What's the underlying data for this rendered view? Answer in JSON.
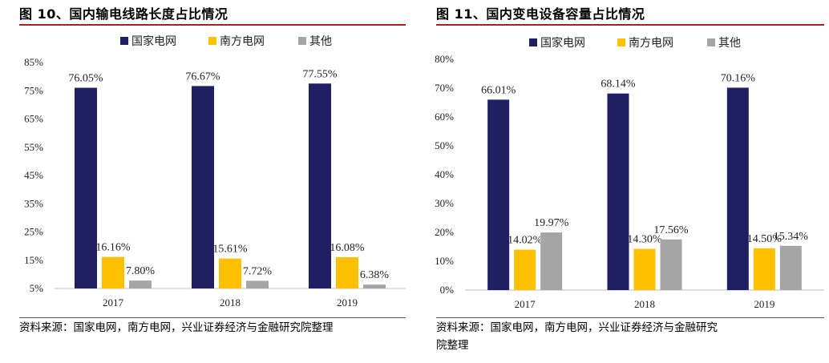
{
  "colors": {
    "state_grid": "#1f1f63",
    "southern_grid": "#ffc000",
    "other": "#a5a5a5",
    "title_rule": "#b01e23"
  },
  "left": {
    "title": "图 10、国内输电线路长度占比情况",
    "source": "资料来源：国家电网，南方电网，兴业证券经济与金融研究院整理"
  },
  "right": {
    "title": "图 11、国内变电设备容量占比情况",
    "source_line1": "资料来源：国家电网，南方电网，兴业证券经济与金融研究",
    "source_line2": "院整理"
  },
  "chart_data": [
    {
      "type": "bar",
      "categories": [
        "2017",
        "2018",
        "2019"
      ],
      "series": [
        {
          "name": "国家电网",
          "values": [
            76.05,
            76.67,
            77.55
          ],
          "labels": [
            "76.05%",
            "76.67%",
            "77.55%"
          ]
        },
        {
          "name": "南方电网",
          "values": [
            16.16,
            15.61,
            16.08
          ],
          "labels": [
            "16.16%",
            "15.61%",
            "16.08%"
          ]
        },
        {
          "name": "其他",
          "values": [
            7.8,
            7.72,
            6.38
          ],
          "labels": [
            "7.80%",
            "7.72%",
            "6.38%"
          ]
        }
      ],
      "ylim": [
        5,
        85
      ],
      "yticks": [
        5,
        15,
        25,
        35,
        45,
        55,
        65,
        75,
        85
      ],
      "yticklabels": [
        "5%",
        "15%",
        "25%",
        "35%",
        "45%",
        "55%",
        "65%",
        "75%",
        "85%"
      ],
      "legend": "top",
      "grid": false
    },
    {
      "type": "bar",
      "categories": [
        "2017",
        "2018",
        "2019"
      ],
      "series": [
        {
          "name": "国家电网",
          "values": [
            66.01,
            68.14,
            70.16
          ],
          "labels": [
            "66.01%",
            "68.14%",
            "70.16%"
          ]
        },
        {
          "name": "南方电网",
          "values": [
            14.02,
            14.3,
            14.5
          ],
          "labels": [
            "14.02%",
            "14.30%",
            "14.50%"
          ]
        },
        {
          "name": "其他",
          "values": [
            19.97,
            17.56,
            15.34
          ],
          "labels": [
            "19.97%",
            "17.56%",
            "15.34%"
          ]
        }
      ],
      "ylim": [
        0,
        80
      ],
      "yticks": [
        0,
        10,
        20,
        30,
        40,
        50,
        60,
        70,
        80
      ],
      "yticklabels": [
        "0%",
        "10%",
        "20%",
        "30%",
        "40%",
        "50%",
        "60%",
        "70%",
        "80%"
      ],
      "legend": "top",
      "grid": false
    }
  ]
}
